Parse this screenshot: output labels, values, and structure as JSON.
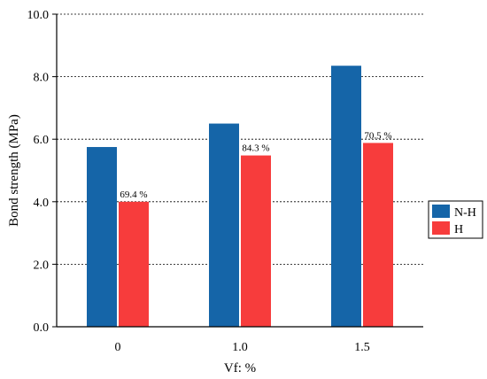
{
  "chart_data": {
    "type": "bar",
    "xlabel": "Vf: %",
    "ylabel": "Bond strength (MPa)",
    "categories": [
      "0",
      "1.0",
      "1.5"
    ],
    "ylim": [
      0,
      10
    ],
    "yticks": [
      "0.0",
      "2.0",
      "4.0",
      "6.0",
      "8.0",
      "10.0"
    ],
    "grid": true,
    "legend_position": "right",
    "series": [
      {
        "name": "N-H",
        "color": "#1565a8",
        "values": [
          5.75,
          6.5,
          8.35
        ]
      },
      {
        "name": "H",
        "color": "#f73c3c",
        "values": [
          4.0,
          5.48,
          5.88
        ]
      }
    ],
    "annotations": [
      "69.4 %",
      "84.3 %",
      "70.5 %"
    ]
  }
}
